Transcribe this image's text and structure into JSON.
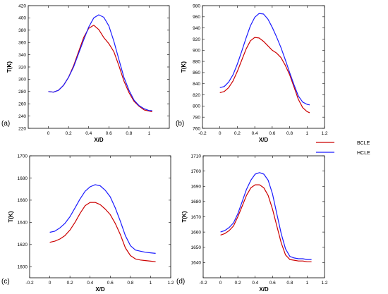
{
  "colors": {
    "BCLE": "#cc0000",
    "HCLE": "#1a1aff"
  },
  "legend": {
    "position": "right",
    "items": [
      {
        "name": "BCLE",
        "color": "#cc0000"
      },
      {
        "name": "HCLE",
        "color": "#1a1aff"
      }
    ]
  },
  "chart_data": [
    {
      "type": "line",
      "panel_label": "(a)",
      "xlabel": "X/D",
      "ylabel": "T(K)",
      "xlim": [
        -0.2,
        1.2
      ],
      "ylim": [
        220,
        420
      ],
      "xticks": [
        "0",
        "0.2",
        "0.4",
        "0.6",
        "0.8",
        "1"
      ],
      "yticks": [
        "220",
        "240",
        "260",
        "280",
        "300",
        "320",
        "340",
        "360",
        "380",
        "400",
        "420"
      ],
      "series": [
        {
          "name": "BCLE",
          "x": [
            0,
            0.05,
            0.1,
            0.15,
            0.2,
            0.25,
            0.3,
            0.35,
            0.4,
            0.45,
            0.5,
            0.55,
            0.6,
            0.65,
            0.7,
            0.75,
            0.8,
            0.85,
            0.9,
            0.95,
            1.0,
            1.03
          ],
          "y": [
            280,
            279,
            282,
            290,
            303,
            322,
            345,
            368,
            383,
            388,
            381,
            368,
            358,
            345,
            322,
            297,
            278,
            264,
            256,
            250,
            248,
            247
          ]
        },
        {
          "name": "HCLE",
          "x": [
            0,
            0.05,
            0.1,
            0.15,
            0.2,
            0.25,
            0.3,
            0.35,
            0.4,
            0.45,
            0.5,
            0.55,
            0.6,
            0.65,
            0.7,
            0.75,
            0.8,
            0.85,
            0.9,
            0.95,
            1.0,
            1.03
          ],
          "y": [
            280,
            279,
            282,
            290,
            303,
            320,
            342,
            364,
            385,
            400,
            405,
            401,
            387,
            362,
            332,
            303,
            282,
            266,
            257,
            252,
            249,
            249
          ]
        }
      ]
    },
    {
      "type": "line",
      "panel_label": "(b)",
      "xlabel": "X/D",
      "ylabel": "T(K)",
      "xlim": [
        -0.2,
        1.2
      ],
      "ylim": [
        760,
        980
      ],
      "xticks": [
        "-0.2",
        "0",
        "0.2",
        "0.4",
        "0.6",
        "0.8",
        "1",
        "1.2"
      ],
      "yticks": [
        "760",
        "780",
        "800",
        "820",
        "840",
        "860",
        "880",
        "900",
        "920",
        "940",
        "960",
        "980"
      ],
      "series": [
        {
          "name": "BCLE",
          "x": [
            0,
            0.05,
            0.1,
            0.15,
            0.2,
            0.25,
            0.3,
            0.35,
            0.4,
            0.45,
            0.5,
            0.55,
            0.6,
            0.65,
            0.7,
            0.75,
            0.8,
            0.85,
            0.9,
            0.95,
            1.0,
            1.03
          ],
          "y": [
            824,
            826,
            833,
            845,
            862,
            882,
            902,
            917,
            923,
            922,
            916,
            908,
            900,
            895,
            887,
            873,
            856,
            834,
            812,
            797,
            790,
            788
          ]
        },
        {
          "name": "HCLE",
          "x": [
            0,
            0.05,
            0.1,
            0.15,
            0.2,
            0.25,
            0.3,
            0.35,
            0.4,
            0.45,
            0.5,
            0.55,
            0.6,
            0.65,
            0.7,
            0.75,
            0.8,
            0.85,
            0.9,
            0.95,
            1.0,
            1.03
          ],
          "y": [
            833,
            835,
            843,
            856,
            875,
            898,
            922,
            944,
            959,
            966,
            965,
            956,
            941,
            924,
            905,
            883,
            860,
            838,
            818,
            807,
            803,
            802
          ]
        }
      ]
    },
    {
      "type": "line",
      "panel_label": "(c)",
      "xlabel": "X/D",
      "ylabel": "T(K)",
      "xlim": [
        -0.2,
        1.2
      ],
      "ylim": [
        1590,
        1700
      ],
      "xticks": [
        "-0.2",
        "0",
        "0.2",
        "0.4",
        "0.6",
        "0.8",
        "1",
        "1.2"
      ],
      "yticks": [
        "1600",
        "1620",
        "1640",
        "1660",
        "1680",
        "1700"
      ],
      "series": [
        {
          "name": "BCLE",
          "x": [
            0,
            0.05,
            0.1,
            0.15,
            0.2,
            0.25,
            0.3,
            0.35,
            0.4,
            0.45,
            0.5,
            0.55,
            0.6,
            0.65,
            0.7,
            0.75,
            0.8,
            0.85,
            0.9,
            0.95,
            1.0,
            1.05
          ],
          "y": [
            1622,
            1623,
            1625,
            1628,
            1633,
            1640,
            1648,
            1655,
            1658,
            1658,
            1656,
            1652,
            1647,
            1639,
            1629,
            1617,
            1610,
            1607,
            1606,
            1605.5,
            1605,
            1604.5
          ]
        },
        {
          "name": "HCLE",
          "x": [
            0,
            0.05,
            0.1,
            0.15,
            0.2,
            0.25,
            0.3,
            0.35,
            0.4,
            0.45,
            0.5,
            0.55,
            0.6,
            0.65,
            0.7,
            0.75,
            0.8,
            0.85,
            0.9,
            0.95,
            1.0,
            1.05
          ],
          "y": [
            1631,
            1632,
            1635,
            1639,
            1645,
            1653,
            1661,
            1668,
            1672,
            1674,
            1673,
            1669,
            1663,
            1653,
            1641,
            1628,
            1619,
            1615,
            1614,
            1613,
            1612.5,
            1612
          ]
        }
      ]
    },
    {
      "type": "line",
      "panel_label": "(d)",
      "xlabel": "X/D",
      "ylabel": "T(K)",
      "xlim": [
        -0.2,
        1.2
      ],
      "ylim": [
        1630,
        1710
      ],
      "xticks": [
        "-0.2",
        "0",
        "0.2",
        "0.4",
        "0.6",
        "0.8",
        "1",
        "1.2"
      ],
      "yticks": [
        "1640",
        "1650",
        "1660",
        "1670",
        "1680",
        "1690",
        "1700",
        "1710"
      ],
      "series": [
        {
          "name": "BCLE",
          "x": [
            0,
            0.05,
            0.1,
            0.15,
            0.2,
            0.25,
            0.3,
            0.35,
            0.4,
            0.45,
            0.5,
            0.55,
            0.6,
            0.65,
            0.7,
            0.75,
            0.8,
            0.85,
            0.9,
            0.95,
            1.0,
            1.05
          ],
          "y": [
            1658,
            1659,
            1661,
            1664,
            1670,
            1677,
            1684,
            1689,
            1691,
            1691,
            1689,
            1684,
            1675,
            1664,
            1653,
            1645,
            1642,
            1641.5,
            1641,
            1641,
            1640.5,
            1640.5
          ]
        },
        {
          "name": "HCLE",
          "x": [
            0,
            0.05,
            0.1,
            0.15,
            0.2,
            0.25,
            0.3,
            0.35,
            0.4,
            0.45,
            0.5,
            0.55,
            0.6,
            0.65,
            0.7,
            0.75,
            0.8,
            0.85,
            0.9,
            0.95,
            1.0,
            1.05
          ],
          "y": [
            1660,
            1661,
            1663,
            1666,
            1672,
            1680,
            1688,
            1694,
            1698,
            1699,
            1698,
            1694,
            1685,
            1672,
            1659,
            1649,
            1644,
            1643,
            1642.5,
            1642.5,
            1642,
            1642
          ]
        }
      ]
    }
  ]
}
